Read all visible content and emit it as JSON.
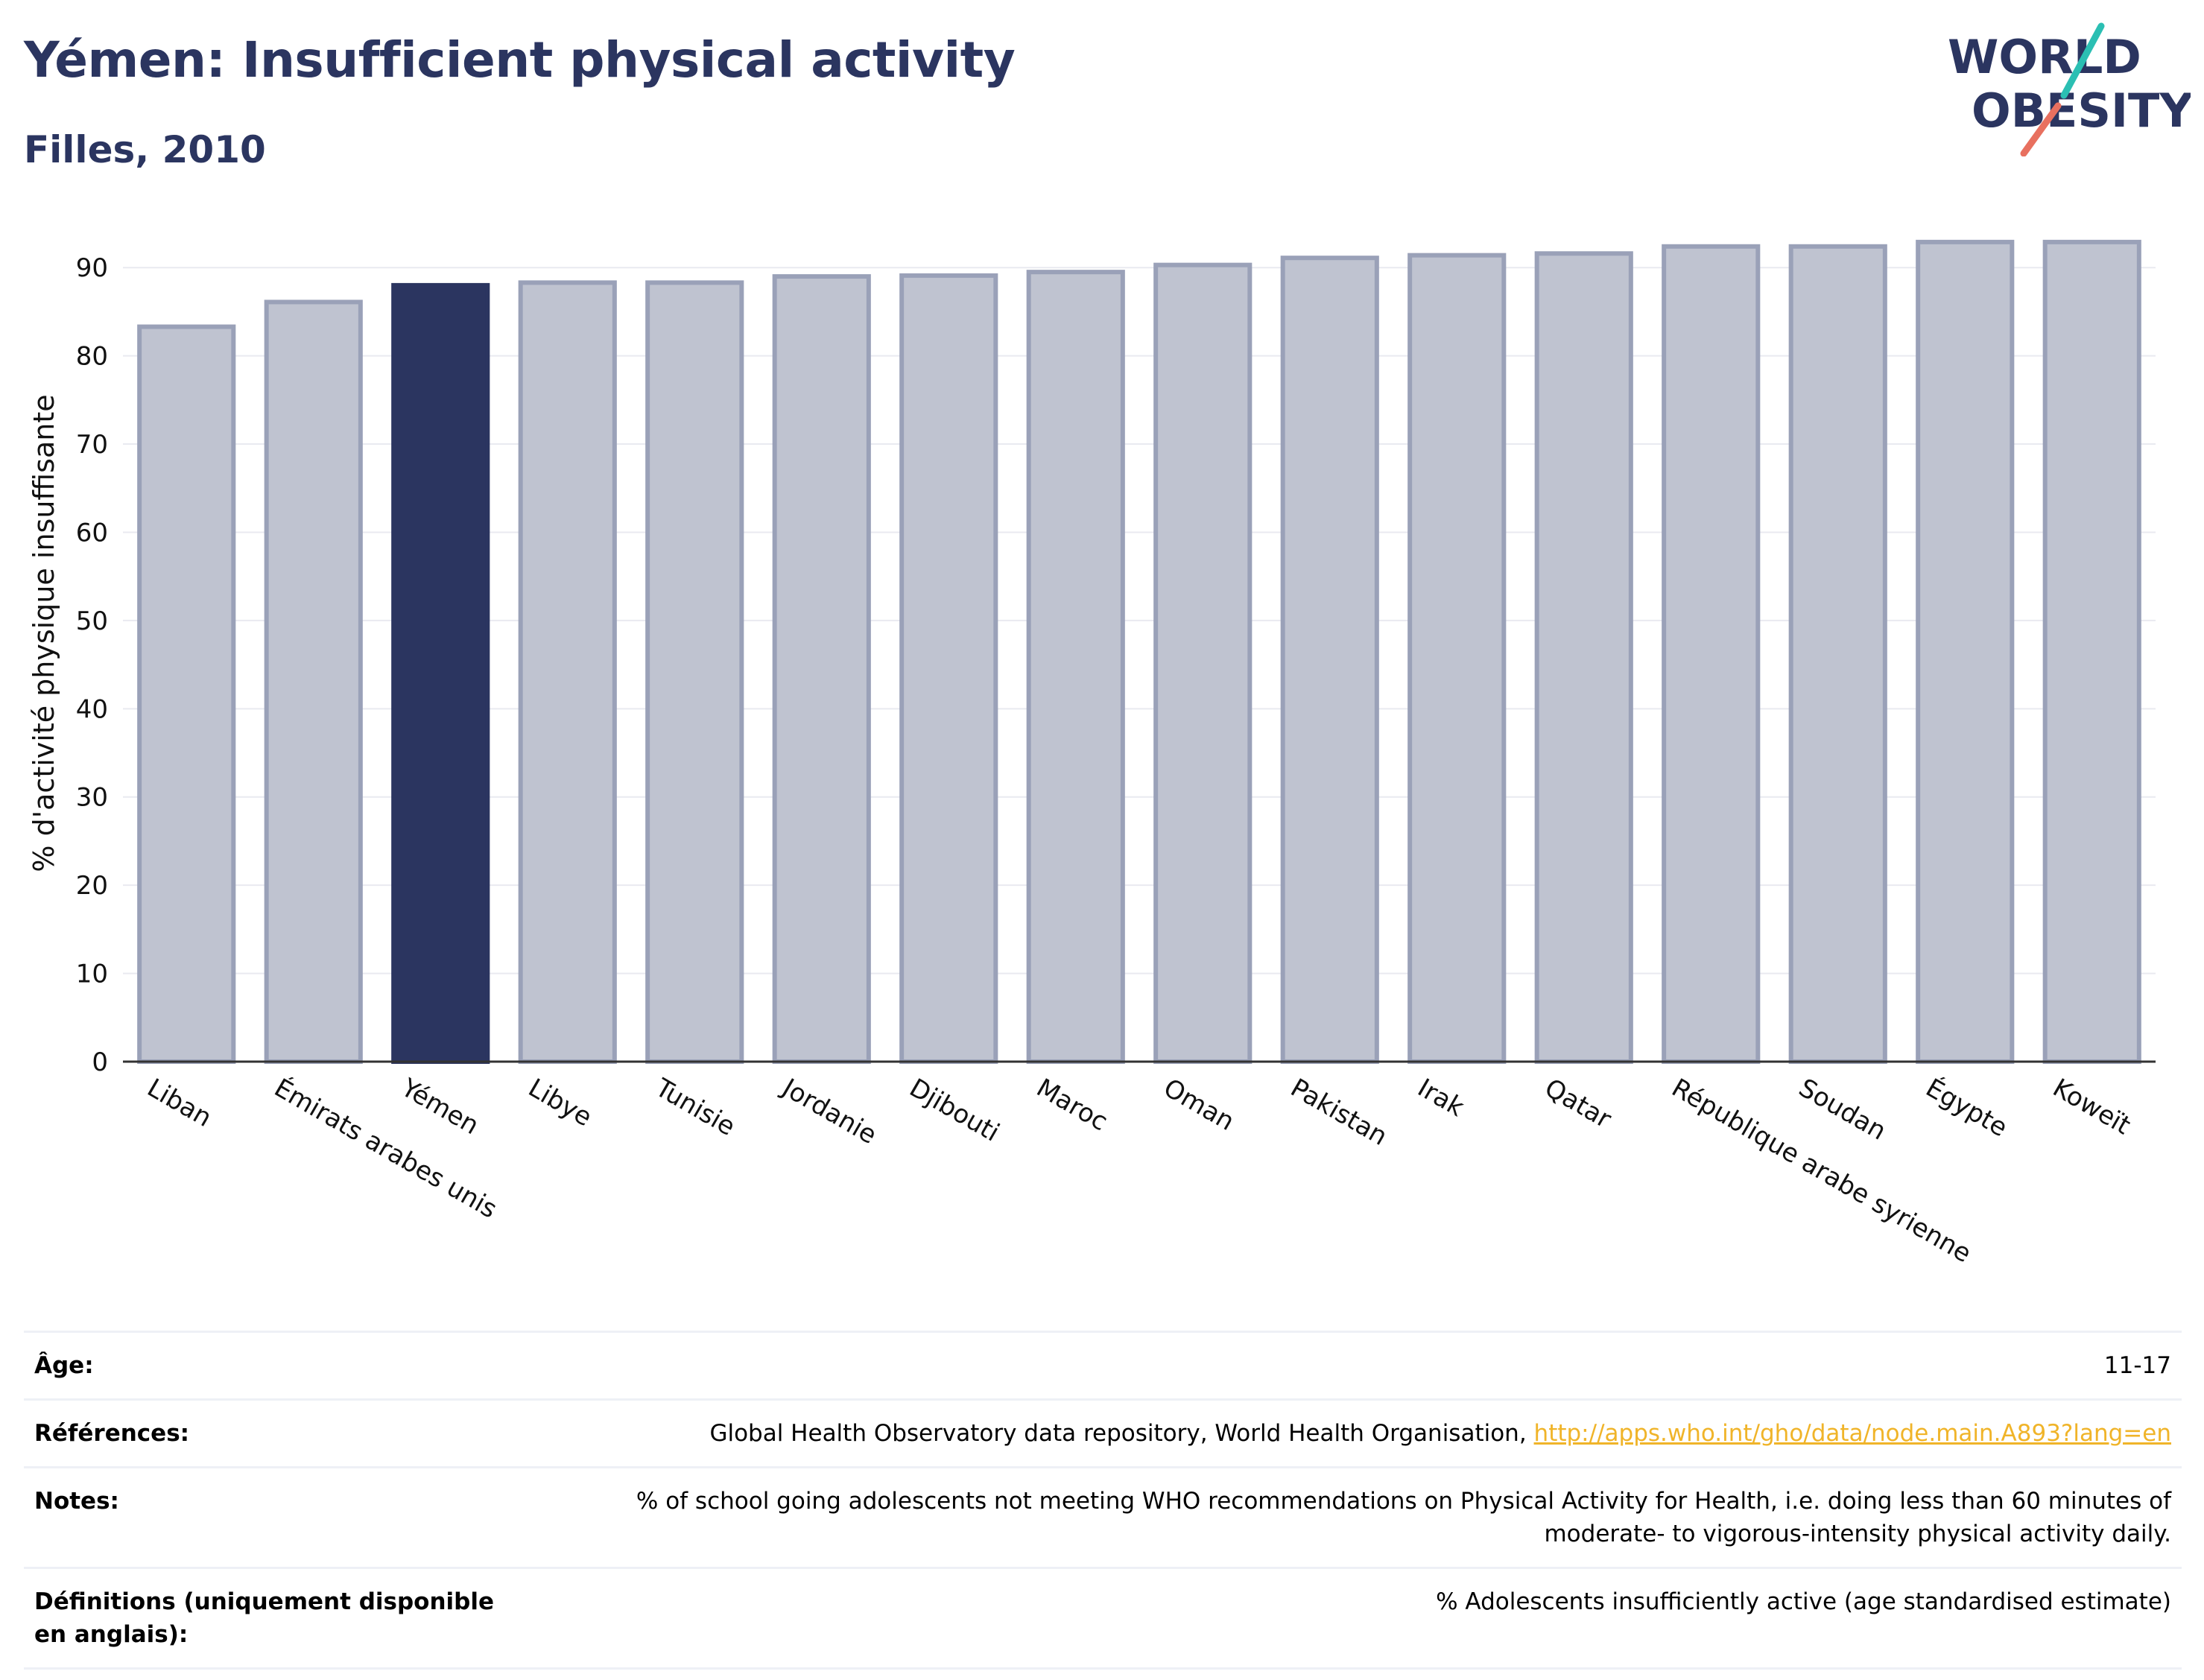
{
  "header": {
    "title": "Yémen: Insufficient physical activity",
    "subtitle": "Filles, 2010"
  },
  "logo": {
    "line1": "WORLD",
    "line2": "OBESITY",
    "colors": {
      "text": "#2b3560",
      "teal": "#2bbfb3",
      "coral": "#e8705f"
    }
  },
  "colors": {
    "bar": "#bfc3d0",
    "bar_stroke": "#9aa1b8",
    "highlight": "#2b3560",
    "grid": "#e9eaf0",
    "axis": "#333333"
  },
  "chart_data": {
    "type": "bar",
    "title": "Yémen: Insufficient physical activity",
    "subtitle": "Filles, 2010",
    "ylabel": "% d'activité physique insuffisante",
    "xlabel": "",
    "ylim": [
      0,
      95
    ],
    "yticks": [
      0,
      10,
      20,
      30,
      40,
      50,
      60,
      70,
      80,
      90
    ],
    "grid": true,
    "highlight": "Yémen",
    "categories": [
      "Liban",
      "Émirats arabes unis",
      "Yémen",
      "Libye",
      "Tunisie",
      "Jordanie",
      "Djibouti",
      "Maroc",
      "Oman",
      "Pakistan",
      "Irak",
      "Qatar",
      "République arabe syrienne",
      "Soudan",
      "Égypte",
      "Koweït"
    ],
    "values": [
      83.3,
      86.1,
      88.0,
      88.3,
      88.3,
      89.0,
      89.1,
      89.5,
      90.3,
      91.1,
      91.4,
      91.6,
      92.4,
      92.4,
      92.9,
      92.9
    ]
  },
  "meta": {
    "rows": [
      {
        "label": "Âge:",
        "value": "11-17"
      },
      {
        "label": "Références:",
        "value": "Global Health Observatory data repository, World Health Organisation, ",
        "link": "http://apps.who.int/gho/data/node.main.A893?lang=en"
      },
      {
        "label": "Notes:",
        "value": "% of school going adolescents not meeting WHO recommendations on Physical Activity for Health, i.e. doing less than 60 minutes of moderate- to vigorous-intensity physical activity daily."
      },
      {
        "label": "Définitions (uniquement disponible en anglais):",
        "value": "% Adolescents insufficiently active (age standardised estimate)"
      }
    ]
  }
}
